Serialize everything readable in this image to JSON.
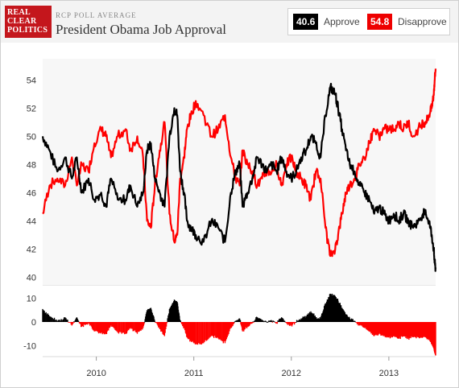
{
  "header": {
    "logo_lines": [
      "REAL",
      "CLEAR",
      "POLITICS"
    ],
    "kicker": "RCP POLL AVERAGE",
    "title": "President Obama Job Approval"
  },
  "legend": {
    "approve_value": "40.6",
    "approve_label": "Approve",
    "disapprove_value": "54.8",
    "disapprove_label": "Disapprove"
  },
  "colors": {
    "approve": "#000000",
    "disapprove": "#ff0000"
  },
  "chart_data": {
    "type": "line",
    "title": "President Obama Job Approval",
    "x_ticks": [
      "2010",
      "2011",
      "2012",
      "2013"
    ],
    "x_tick_dates": [
      2010.0,
      2011.0,
      2012.0,
      2013.0
    ],
    "x_range": [
      2009.45,
      2013.48
    ],
    "y_ticks": [
      54,
      52,
      50,
      48,
      46,
      44,
      42,
      40
    ],
    "ylim": [
      39.5,
      55.5
    ],
    "spread_ticks": [
      10,
      0,
      -10
    ],
    "spread_ylim": [
      -14,
      14
    ],
    "grid": false,
    "legend": "top-right",
    "x": [
      2009.45,
      2009.52,
      2009.6,
      2009.68,
      2009.75,
      2009.8,
      2009.85,
      2009.92,
      2009.98,
      2010.05,
      2010.1,
      2010.15,
      2010.22,
      2010.3,
      2010.35,
      2010.42,
      2010.48,
      2010.52,
      2010.56,
      2010.6,
      2010.65,
      2010.7,
      2010.75,
      2010.8,
      2010.83,
      2010.86,
      2010.9,
      2010.93,
      2010.97,
      2011.02,
      2011.1,
      2011.18,
      2011.25,
      2011.32,
      2011.38,
      2011.43,
      2011.47,
      2011.5,
      2011.55,
      2011.6,
      2011.65,
      2011.7,
      2011.75,
      2011.8,
      2011.85,
      2011.9,
      2011.95,
      2012.0,
      2012.05,
      2012.1,
      2012.15,
      2012.2,
      2012.25,
      2012.3,
      2012.35,
      2012.4,
      2012.45,
      2012.48,
      2012.52,
      2012.56,
      2012.6,
      2012.65,
      2012.7,
      2012.75,
      2012.8,
      2012.85,
      2012.9,
      2012.95,
      2013.0,
      2013.05,
      2013.1,
      2013.15,
      2013.2,
      2013.25,
      2013.3,
      2013.35,
      2013.38,
      2013.41,
      2013.44,
      2013.46,
      2013.47,
      2013.48
    ],
    "series": [
      {
        "name": "Approve",
        "values": [
          50.0,
          49.0,
          47.5,
          48.5,
          47.0,
          48.5,
          46.0,
          47.0,
          45.5,
          46.0,
          45.0,
          47.0,
          45.5,
          45.5,
          46.5,
          45.0,
          46.0,
          49.0,
          49.5,
          47.0,
          46.0,
          45.0,
          50.0,
          52.0,
          51.5,
          47.5,
          46.0,
          44.0,
          43.5,
          43.0,
          42.5,
          44.0,
          43.5,
          42.5,
          46.0,
          47.5,
          48.0,
          45.0,
          46.0,
          47.0,
          48.5,
          48.0,
          47.5,
          48.0,
          47.5,
          48.5,
          47.5,
          47.0,
          47.5,
          48.5,
          49.0,
          50.0,
          49.5,
          48.5,
          51.5,
          53.5,
          53.0,
          52.0,
          50.5,
          49.0,
          48.0,
          47.5,
          46.5,
          46.0,
          45.5,
          44.5,
          45.0,
          44.5,
          44.0,
          44.5,
          44.0,
          44.5,
          44.0,
          43.5,
          44.0,
          44.5,
          44.5,
          44.0,
          43.0,
          42.0,
          41.0,
          40.6
        ]
      },
      {
        "name": "Disapprove",
        "values": [
          44.5,
          46.5,
          47.0,
          46.5,
          48.5,
          46.5,
          48.0,
          47.5,
          49.5,
          50.5,
          50.0,
          48.5,
          50.0,
          50.5,
          49.0,
          50.0,
          48.5,
          44.0,
          43.5,
          46.5,
          49.0,
          51.0,
          44.5,
          42.5,
          43.0,
          47.0,
          48.5,
          50.5,
          51.5,
          52.5,
          51.5,
          50.0,
          50.5,
          51.5,
          48.5,
          47.0,
          46.5,
          49.0,
          48.0,
          47.5,
          46.5,
          47.0,
          47.5,
          47.5,
          48.0,
          46.5,
          48.0,
          48.5,
          47.5,
          47.0,
          46.5,
          45.5,
          47.5,
          47.0,
          43.5,
          41.5,
          42.0,
          43.0,
          44.5,
          46.0,
          46.5,
          47.0,
          48.0,
          48.5,
          49.5,
          50.5,
          50.0,
          50.5,
          50.5,
          50.5,
          51.0,
          50.5,
          51.0,
          50.0,
          50.5,
          51.0,
          51.0,
          51.5,
          52.0,
          53.0,
          54.0,
          54.8
        ]
      }
    ]
  }
}
